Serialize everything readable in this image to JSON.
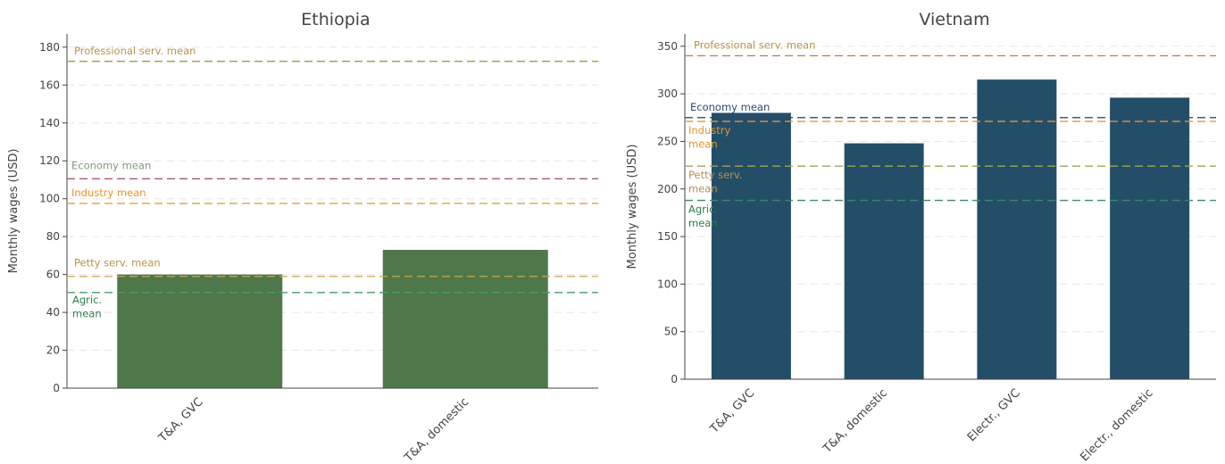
{
  "chart_data": [
    {
      "type": "bar",
      "title": "Ethiopia",
      "ylabel": "Monthly wages (USD)",
      "ylim": [
        0,
        187
      ],
      "yticks": [
        0,
        20,
        40,
        60,
        80,
        100,
        120,
        140,
        160,
        180
      ],
      "categories": [
        "T&A, GVC",
        "T&A, domestic"
      ],
      "values": [
        60,
        73
      ],
      "bar_color": "#4e784a",
      "grid": "horizontal dashed",
      "reference_lines": [
        {
          "label": "Professional serv. mean",
          "value": 172.5,
          "color": "#8c9440",
          "label_color": "#b8924a"
        },
        {
          "label": "Economy mean",
          "value": 110.5,
          "color": "#a04a6a",
          "label_color": "#7f9a7a"
        },
        {
          "label": "Industry mean",
          "value": 97.5,
          "color": "#e6952b",
          "label_color": "#e6952b"
        },
        {
          "label": "Petty serv. mean",
          "value": 59,
          "color": "#c9a64a",
          "label_color": "#b8924a"
        },
        {
          "label": "Agric. mean",
          "value": 50.5,
          "color": "#4a9a70",
          "label_color": "#2e7d4a"
        }
      ]
    },
    {
      "type": "bar",
      "title": "Vietnam",
      "ylabel": "Monthly wages (USD)",
      "ylim": [
        0,
        363
      ],
      "yticks": [
        0,
        50,
        100,
        150,
        200,
        250,
        300,
        350
      ],
      "categories": [
        "T&A, GVC",
        "T&A, domestic",
        "Electr., GVC",
        "Electr., domestic"
      ],
      "values": [
        280,
        248,
        315,
        296
      ],
      "bar_color": "#234e68",
      "grid": "horizontal dashed",
      "reference_lines": [
        {
          "label": "Professional serv. mean",
          "value": 340,
          "color": "#c07a4a",
          "label_color": "#b8924a"
        },
        {
          "label": "Economy mean",
          "value": 275,
          "color": "#2d4a6a",
          "label_color": "#2d4a6a"
        },
        {
          "label": "Industry mean",
          "value": 271,
          "color": "#e6952b",
          "label_color": "#e6952b"
        },
        {
          "label": "Petty serv. mean",
          "value": 224,
          "color": "#a8a050",
          "label_color": "#b8924a"
        },
        {
          "label": "Agric. mean",
          "value": 188,
          "color": "#3a8a6a",
          "label_color": "#2e7d4a"
        }
      ]
    }
  ]
}
